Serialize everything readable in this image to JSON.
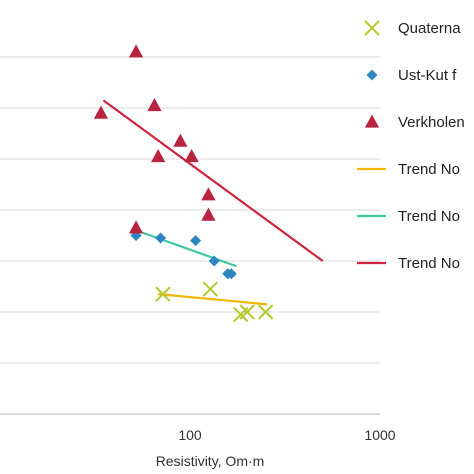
{
  "chart_data": {
    "type": "scatter",
    "x_scale": "log",
    "xlim": [
      10,
      1000
    ],
    "x_ticks": [
      {
        "value": 100,
        "label": "100"
      },
      {
        "value": 1000,
        "label": "1000"
      }
    ],
    "y_lim": [
      0,
      8
    ],
    "y_gridlines": [
      1,
      2,
      3,
      4,
      5,
      6,
      7
    ],
    "xlabel": "Resistivity, Om·m",
    "ylabel": "",
    "grid": true,
    "legend_position": "right",
    "series": [
      {
        "name": "Quaterna",
        "marker": "x",
        "color": "#b5c92a",
        "points": [
          [
            72,
            2.35
          ],
          [
            128,
            2.45
          ],
          [
            185,
            1.95
          ],
          [
            200,
            2.0
          ],
          [
            250,
            2.0
          ]
        ]
      },
      {
        "name": "Ust-Kut f",
        "marker": "diamond",
        "color": "#2e86c1",
        "points": [
          [
            52,
            3.5
          ],
          [
            70,
            3.45
          ],
          [
            107,
            3.4
          ],
          [
            134,
            3.0
          ],
          [
            158,
            2.75
          ],
          [
            165,
            2.75
          ]
        ]
      },
      {
        "name": "Verkholen",
        "marker": "triangle",
        "color": "#b8233f",
        "points": [
          [
            52,
            7.1
          ],
          [
            34,
            5.9
          ],
          [
            65,
            6.05
          ],
          [
            68,
            5.05
          ],
          [
            89,
            5.35
          ],
          [
            102,
            5.05
          ],
          [
            125,
            4.3
          ],
          [
            125,
            3.9
          ],
          [
            52,
            3.65
          ]
        ]
      },
      {
        "name": "Trend No",
        "marker": "line",
        "color": "#f2b705",
        "line": [
          [
            68,
            2.35
          ],
          [
            255,
            2.15
          ]
        ]
      },
      {
        "name": "Trend No",
        "marker": "line",
        "color": "#3cc9a0",
        "line": [
          [
            52,
            3.6
          ],
          [
            175,
            2.9
          ]
        ]
      },
      {
        "name": "Trend No",
        "marker": "line",
        "color": "#d0243f",
        "line": [
          [
            35,
            6.15
          ],
          [
            500,
            3.0
          ]
        ]
      }
    ]
  }
}
